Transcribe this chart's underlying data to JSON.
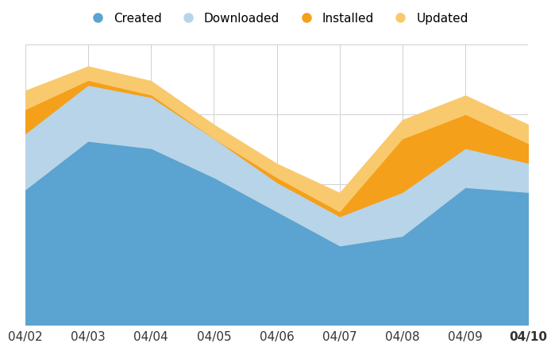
{
  "x_labels": [
    "04/02",
    "04/03",
    "04/04",
    "04/05",
    "04/06",
    "04/07",
    "04/08",
    "04/09",
    "04/10"
  ],
  "created": [
    55,
    75,
    72,
    60,
    46,
    32,
    36,
    56,
    54
  ],
  "downloaded": [
    78,
    98,
    93,
    76,
    58,
    44,
    54,
    72,
    66
  ],
  "installed": [
    88,
    100,
    94,
    76,
    60,
    46,
    76,
    86,
    74
  ],
  "updated": [
    96,
    106,
    100,
    82,
    66,
    54,
    84,
    94,
    82
  ],
  "ylim_min": 0,
  "ylim_max": 115,
  "color_created": "#5ba3d0",
  "color_downloaded": "#b8d4e8",
  "color_installed": "#f5a01a",
  "color_updated": "#f9c96e",
  "legend_labels": [
    "Created",
    "Downloaded",
    "Installed",
    "Updated"
  ],
  "legend_marker_colors": [
    "#5ba3d0",
    "#b8d4e8",
    "#f5a01a",
    "#f9c96e"
  ],
  "background_color": "#ffffff",
  "grid_color": "#d0d0d0"
}
